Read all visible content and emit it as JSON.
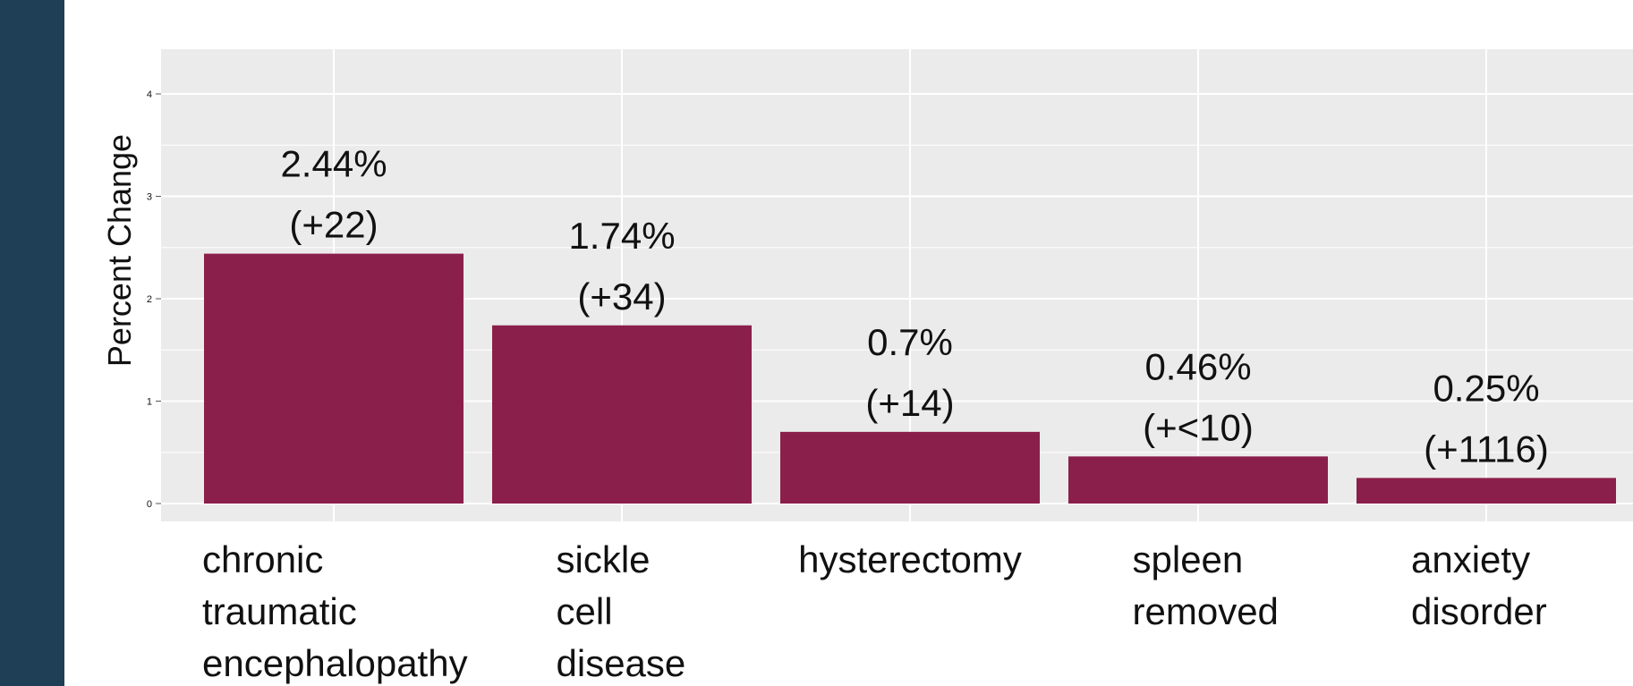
{
  "header": {
    "title_fragment": ""
  },
  "colors": {
    "sidebar": "#1f3f57",
    "panel": "#ebebeb",
    "grid": "#ffffff",
    "bar": "#8b1f4b"
  },
  "chart_data": {
    "type": "bar",
    "title": "",
    "xlabel": "",
    "ylabel": "Percent Change",
    "ylim": [
      0,
      4
    ],
    "yticks": [
      0,
      1,
      2,
      3,
      4
    ],
    "grid": true,
    "legend": "none",
    "categories": [
      [
        "chronic",
        "traumatic",
        "encephalopathy"
      ],
      [
        "sickle",
        "cell",
        "disease"
      ],
      [
        "hysterectomy"
      ],
      [
        "spleen",
        "removed"
      ],
      [
        "anxiety",
        "disorder"
      ]
    ],
    "values": [
      2.44,
      1.74,
      0.7,
      0.46,
      0.25
    ],
    "data_labels": [
      [
        "2.44%",
        "(+22)"
      ],
      [
        "1.74%",
        "(+34)"
      ],
      [
        "0.7%",
        "(+14)"
      ],
      [
        "0.46%",
        "(+<10)"
      ],
      [
        "0.25%",
        "(+1116)"
      ]
    ]
  }
}
